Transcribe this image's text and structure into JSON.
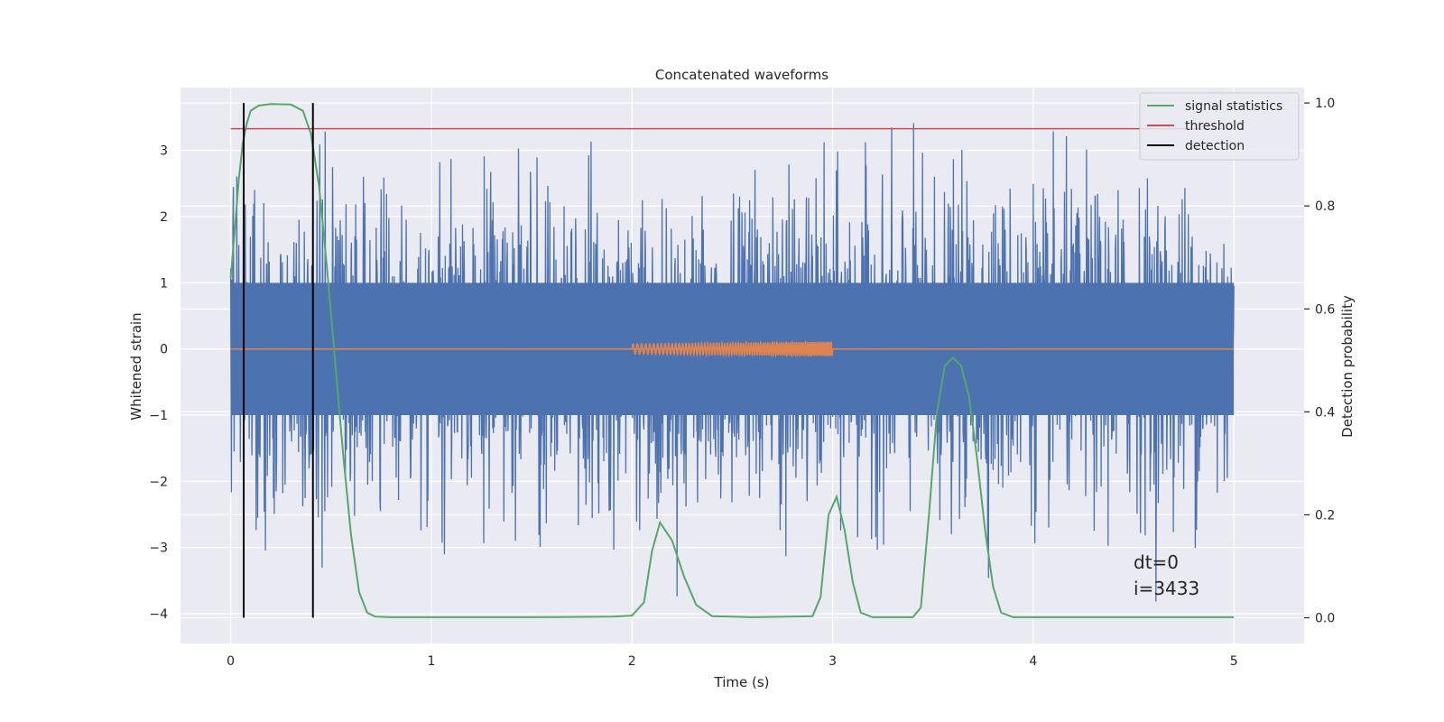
{
  "chart_data": {
    "type": "line",
    "title": "Concatenated waveforms",
    "xlabel": "Time (s)",
    "ylabel": "Whitened strain",
    "y2label": "Detection probability",
    "xlim": [
      -0.25,
      5.35
    ],
    "ylim": [
      -4.45,
      3.95
    ],
    "y2lim": [
      -0.05,
      1.03
    ],
    "xticks": [
      0,
      1,
      2,
      3,
      4,
      5
    ],
    "yticks": [
      -4,
      -3,
      -2,
      -1,
      0,
      1,
      2,
      3
    ],
    "y2ticks": [
      0.0,
      0.2,
      0.4,
      0.6,
      0.8,
      1.0
    ],
    "grid": true,
    "background": "#eaeaf2",
    "legend_position": "top-right",
    "legend": [
      {
        "label": "signal statistics",
        "color": "#55a868"
      },
      {
        "label": "threshold",
        "color": "#c44e52"
      },
      {
        "label": "detection",
        "color": "#000000"
      }
    ],
    "annotations": [
      "dt=0",
      "i=3433"
    ],
    "noise_series": {
      "color": "#4c72b0",
      "x_range": [
        0,
        5
      ],
      "envelope_abs": 1.0,
      "peak_max": 3.58,
      "peak_min": -3.83
    },
    "injected_signal": {
      "color": "#dd8452",
      "x_range": [
        2.0,
        3.0
      ],
      "amplitude": 0.1
    },
    "series": [
      {
        "name": "signal statistics",
        "axis": "right",
        "color": "#55a868",
        "x": [
          0.0,
          0.02,
          0.04,
          0.06,
          0.08,
          0.1,
          0.14,
          0.2,
          0.3,
          0.36,
          0.4,
          0.44,
          0.48,
          0.52,
          0.56,
          0.6,
          0.64,
          0.68,
          0.72,
          0.8,
          1.0,
          1.5,
          1.9,
          2.0,
          2.06,
          2.1,
          2.14,
          2.2,
          2.26,
          2.32,
          2.4,
          2.6,
          2.9,
          2.94,
          2.98,
          3.02,
          3.06,
          3.1,
          3.14,
          3.2,
          3.4,
          3.44,
          3.48,
          3.52,
          3.56,
          3.6,
          3.64,
          3.68,
          3.72,
          3.76,
          3.8,
          3.84,
          3.9,
          4.2,
          4.6,
          5.0
        ],
        "y": [
          0.66,
          0.75,
          0.85,
          0.92,
          0.96,
          0.985,
          0.995,
          0.998,
          0.997,
          0.985,
          0.94,
          0.84,
          0.68,
          0.5,
          0.32,
          0.16,
          0.05,
          0.01,
          0.002,
          0.001,
          0.001,
          0.001,
          0.002,
          0.004,
          0.03,
          0.13,
          0.185,
          0.15,
          0.08,
          0.025,
          0.003,
          0.001,
          0.003,
          0.04,
          0.2,
          0.235,
          0.17,
          0.07,
          0.01,
          0.001,
          0.001,
          0.02,
          0.2,
          0.4,
          0.49,
          0.505,
          0.49,
          0.43,
          0.31,
          0.17,
          0.06,
          0.01,
          0.001,
          0.001,
          0.001,
          0.001
        ]
      },
      {
        "name": "threshold",
        "axis": "right",
        "color": "#c44e52",
        "x": [
          0,
          5
        ],
        "y": [
          0.95,
          0.95
        ]
      },
      {
        "name": "detection",
        "axis": "right",
        "color": "#000000",
        "x": [
          0.065,
          0.41
        ],
        "y": [
          0,
          1
        ]
      }
    ]
  }
}
